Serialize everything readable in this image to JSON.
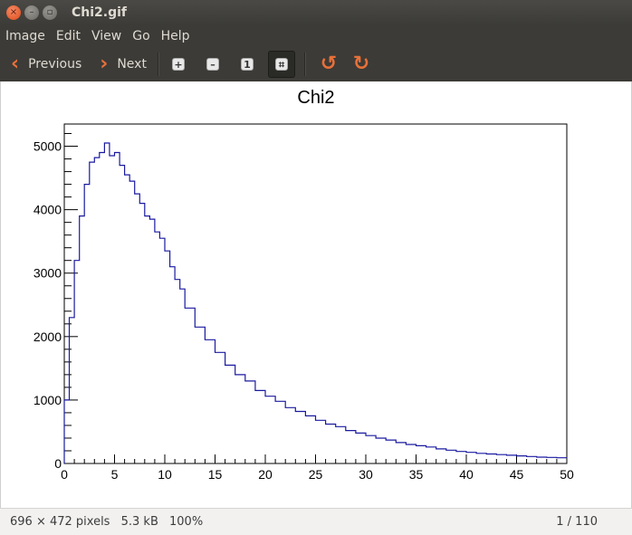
{
  "window": {
    "title": "Chi2.gif"
  },
  "menu": [
    "Image",
    "Edit",
    "View",
    "Go",
    "Help"
  ],
  "toolbar": {
    "previous_label": "Previous",
    "next_label": "Next",
    "accent": "#e8703a"
  },
  "chart_data": {
    "type": "line",
    "title": "Chi2",
    "xlabel": "",
    "ylabel": "",
    "xlim": [
      0,
      50
    ],
    "ylim": [
      0,
      5350
    ],
    "xticks": [
      0,
      5,
      10,
      15,
      20,
      25,
      30,
      35,
      40,
      45,
      50
    ],
    "yticks": [
      0,
      1000,
      2000,
      3000,
      4000,
      5000
    ],
    "grid": false,
    "line_color": "#1a1aa0",
    "x": [
      0.5,
      1,
      1.5,
      2,
      2.5,
      3,
      3.5,
      4,
      4.5,
      5,
      5.5,
      6,
      6.5,
      7,
      7.5,
      8,
      8.5,
      9,
      9.5,
      10,
      10.5,
      11,
      11.5,
      12,
      13,
      14,
      15,
      16,
      17,
      18,
      19,
      20,
      21,
      22,
      23,
      24,
      25,
      26,
      27,
      28,
      29,
      30,
      31,
      32,
      33,
      34,
      35,
      36,
      37,
      38,
      39,
      40,
      41,
      42,
      43,
      44,
      45,
      46,
      47,
      48,
      49,
      50
    ],
    "y": [
      1000,
      2300,
      3200,
      3900,
      4400,
      4750,
      4820,
      4900,
      5050,
      4850,
      4900,
      4700,
      4550,
      4450,
      4250,
      4100,
      3900,
      3850,
      3650,
      3550,
      3350,
      3100,
      2900,
      2750,
      2450,
      2150,
      1950,
      1750,
      1550,
      1400,
      1300,
      1150,
      1060,
      980,
      880,
      820,
      750,
      680,
      620,
      580,
      520,
      480,
      440,
      400,
      370,
      330,
      300,
      280,
      260,
      230,
      210,
      190,
      175,
      160,
      150,
      140,
      130,
      120,
      110,
      100,
      95,
      90
    ]
  },
  "status": {
    "dimensions": "696 × 472 pixels",
    "size": "5.3 kB",
    "zoom": "100%",
    "position": "1 / 110"
  }
}
